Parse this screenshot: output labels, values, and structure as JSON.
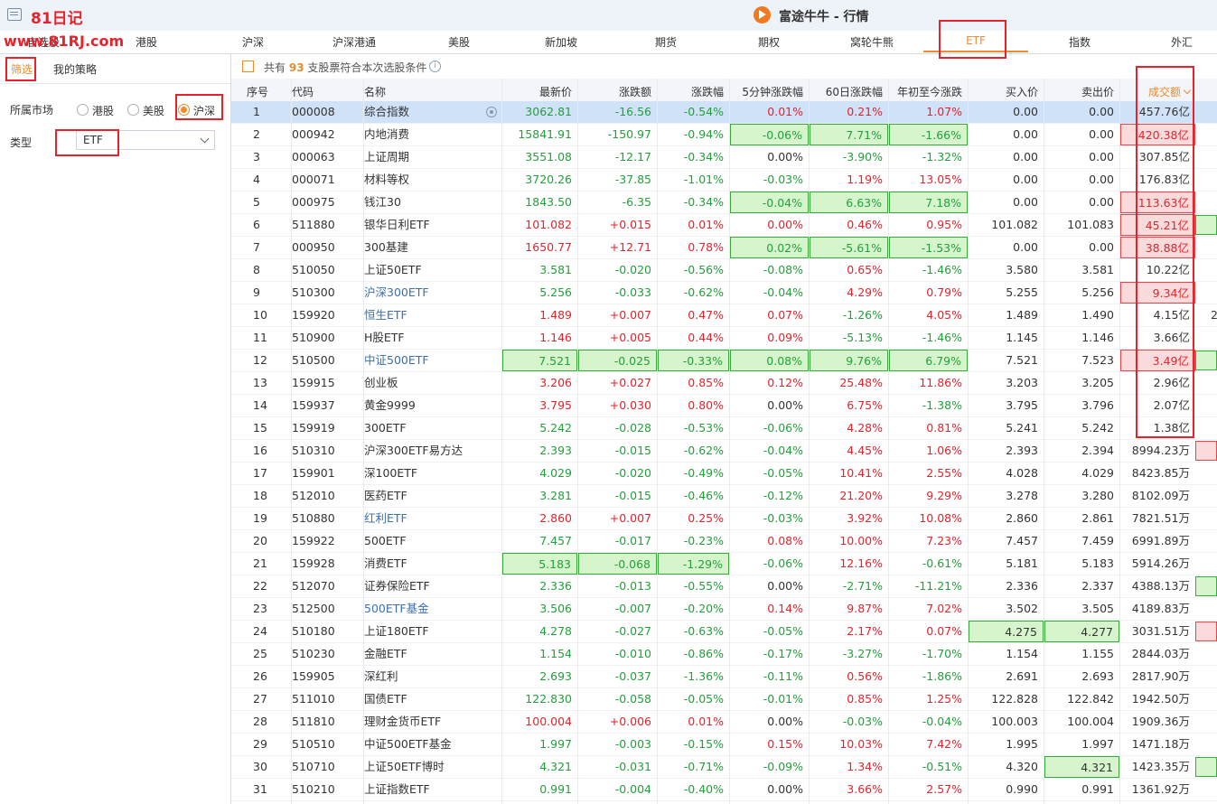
{
  "window": {
    "title": "富途牛牛 - 行情",
    "watermark_title": "81日记",
    "watermark_url": "www.81RJ.com"
  },
  "tabs": [
    {
      "label": "自选股"
    },
    {
      "label": "港股"
    },
    {
      "label": "沪深"
    },
    {
      "label": "沪深港通"
    },
    {
      "label": "美股"
    },
    {
      "label": "新加坡"
    },
    {
      "label": "期货"
    },
    {
      "label": "期权"
    },
    {
      "label": "窝轮牛熊"
    },
    {
      "label": "ETF",
      "active": true
    },
    {
      "label": "指数"
    },
    {
      "label": "外汇"
    }
  ],
  "left_panel": {
    "tab_filter": "筛选",
    "tab_strategy": "我的策略",
    "market_label": "所属市场",
    "market_options": [
      "港股",
      "美股",
      "沪深"
    ],
    "market_selected": "沪深",
    "type_label": "类型",
    "type_value": "ETF"
  },
  "info_bar": {
    "prefix": "共有",
    "count": "93",
    "suffix": "支股票符合本次选股条件",
    "info_icon": "i"
  },
  "table": {
    "headers": [
      "序号",
      "代码",
      "名称",
      "最新价",
      "涨跌额",
      "涨跌幅",
      "5分钟涨跌幅",
      "60日涨跌幅",
      "年初至今涨跌",
      "买入价",
      "卖出价",
      "成交额"
    ],
    "sorted_column": "成交额",
    "rows": [
      {
        "no": "1",
        "code": "000008",
        "name": "综合指数",
        "name_style": "flat",
        "price": "3062.81",
        "change": "-16.56",
        "pct": "-0.54%",
        "m5": "0.01%",
        "d60": "0.21%",
        "ytd": "1.07%",
        "bid": "0.00",
        "ask": "0.00",
        "turnover": "457.76亿",
        "price_dir": "down",
        "change_dir": "down",
        "pct_dir": "down",
        "m5_dir": "up",
        "d60_dir": "up",
        "ytd_dir": "up",
        "selected": true
      },
      {
        "no": "2",
        "code": "000942",
        "name": "内地消费",
        "name_style": "flat",
        "price": "15841.91",
        "change": "-150.97",
        "pct": "-0.94%",
        "m5": "-0.06%",
        "d60": "7.71%",
        "ytd": "-1.66%",
        "bid": "0.00",
        "ask": "0.00",
        "turnover": "420.38亿",
        "price_dir": "down",
        "change_dir": "down",
        "pct_dir": "down",
        "m5_dir": "down",
        "d60_dir": "down",
        "ytd_dir": "down",
        "hl": {
          "m5": "g",
          "d60": "g",
          "ytd": "g",
          "turnover": "r"
        },
        "turnover_dir": "up"
      },
      {
        "no": "3",
        "code": "000063",
        "name": "上证周期",
        "name_style": "flat",
        "price": "3551.08",
        "change": "-12.17",
        "pct": "-0.34%",
        "m5": "0.00%",
        "d60": "-3.90%",
        "ytd": "-1.32%",
        "bid": "0.00",
        "ask": "0.00",
        "turnover": "307.85亿",
        "price_dir": "down",
        "change_dir": "down",
        "pct_dir": "down",
        "m5_dir": "flat",
        "d60_dir": "down",
        "ytd_dir": "down"
      },
      {
        "no": "4",
        "code": "000071",
        "name": "材料等权",
        "name_style": "flat",
        "price": "3720.26",
        "change": "-37.85",
        "pct": "-1.01%",
        "m5": "-0.03%",
        "d60": "1.19%",
        "ytd": "13.05%",
        "bid": "0.00",
        "ask": "0.00",
        "turnover": "176.83亿",
        "price_dir": "down",
        "change_dir": "down",
        "pct_dir": "down",
        "m5_dir": "down",
        "d60_dir": "up",
        "ytd_dir": "up"
      },
      {
        "no": "5",
        "code": "000975",
        "name": "钱江30",
        "name_style": "flat",
        "price": "1843.50",
        "change": "-6.35",
        "pct": "-0.34%",
        "m5": "-0.04%",
        "d60": "6.63%",
        "ytd": "7.18%",
        "bid": "0.00",
        "ask": "0.00",
        "turnover": "113.63亿",
        "price_dir": "down",
        "change_dir": "down",
        "pct_dir": "down",
        "m5_dir": "down",
        "d60_dir": "down",
        "ytd_dir": "down",
        "hl": {
          "m5": "g",
          "d60": "g",
          "ytd": "g",
          "turnover": "r"
        },
        "turnover_dir": "up"
      },
      {
        "no": "6",
        "code": "511880",
        "name": "银华日利ETF",
        "name_style": "flat",
        "price": "101.082",
        "change": "+0.015",
        "pct": "0.01%",
        "m5": "0.00%",
        "d60": "0.46%",
        "ytd": "0.95%",
        "bid": "101.082",
        "ask": "101.083",
        "turnover": "45.21亿",
        "price_dir": "up",
        "change_dir": "up",
        "pct_dir": "up",
        "m5_dir": "up",
        "d60_dir": "up",
        "ytd_dir": "up",
        "hl": {
          "turnover": "r"
        },
        "turnover_dir": "up",
        "edge": "g"
      },
      {
        "no": "7",
        "code": "000950",
        "name": "300基建",
        "name_style": "flat",
        "price": "1650.77",
        "change": "+12.71",
        "pct": "0.78%",
        "m5": "0.02%",
        "d60": "-5.61%",
        "ytd": "-1.53%",
        "bid": "0.00",
        "ask": "0.00",
        "turnover": "38.88亿",
        "price_dir": "up",
        "change_dir": "up",
        "pct_dir": "up",
        "m5_dir": "down",
        "d60_dir": "down",
        "ytd_dir": "down",
        "hl": {
          "m5": "g",
          "d60": "g",
          "ytd": "g",
          "turnover": "r"
        },
        "turnover_dir": "up"
      },
      {
        "no": "8",
        "code": "510050",
        "name": "上证50ETF",
        "name_style": "flat",
        "price": "3.581",
        "change": "-0.020",
        "pct": "-0.56%",
        "m5": "-0.08%",
        "d60": "0.65%",
        "ytd": "-1.46%",
        "bid": "3.580",
        "ask": "3.581",
        "turnover": "10.22亿",
        "price_dir": "down",
        "change_dir": "down",
        "pct_dir": "down",
        "m5_dir": "down",
        "d60_dir": "up",
        "ytd_dir": "down"
      },
      {
        "no": "9",
        "code": "510300",
        "name": "沪深300ETF",
        "name_style": "link",
        "price": "5.256",
        "change": "-0.033",
        "pct": "-0.62%",
        "m5": "-0.04%",
        "d60": "4.29%",
        "ytd": "0.79%",
        "bid": "5.255",
        "ask": "5.256",
        "turnover": "9.34亿",
        "price_dir": "down",
        "change_dir": "down",
        "pct_dir": "down",
        "m5_dir": "down",
        "d60_dir": "up",
        "ytd_dir": "up",
        "hl": {
          "turnover": "r"
        },
        "turnover_dir": "up"
      },
      {
        "no": "10",
        "code": "159920",
        "name": "恒生ETF",
        "name_style": "link",
        "price": "1.489",
        "change": "+0.007",
        "pct": "0.47%",
        "m5": "0.07%",
        "d60": "-1.26%",
        "ytd": "4.05%",
        "bid": "1.489",
        "ask": "1.490",
        "turnover": "4.15亿",
        "price_dir": "up",
        "change_dir": "up",
        "pct_dir": "up",
        "m5_dir": "up",
        "d60_dir": "down",
        "ytd_dir": "up",
        "edge_text": "2"
      },
      {
        "no": "11",
        "code": "510900",
        "name": "H股ETF",
        "name_style": "flat",
        "price": "1.146",
        "change": "+0.005",
        "pct": "0.44%",
        "m5": "0.09%",
        "d60": "-5.13%",
        "ytd": "-1.46%",
        "bid": "1.145",
        "ask": "1.146",
        "turnover": "3.66亿",
        "price_dir": "up",
        "change_dir": "up",
        "pct_dir": "up",
        "m5_dir": "up",
        "d60_dir": "down",
        "ytd_dir": "down"
      },
      {
        "no": "12",
        "code": "510500",
        "name": "中证500ETF",
        "name_style": "link",
        "price": "7.521",
        "change": "-0.025",
        "pct": "-0.33%",
        "m5": "0.08%",
        "d60": "9.76%",
        "ytd": "6.79%",
        "bid": "7.521",
        "ask": "7.523",
        "turnover": "3.49亿",
        "price_dir": "down",
        "change_dir": "down",
        "pct_dir": "down",
        "m5_dir": "down",
        "d60_dir": "down",
        "ytd_dir": "down",
        "hl": {
          "price": "g",
          "change": "g",
          "pct": "g",
          "m5": "g",
          "d60": "g",
          "ytd": "g",
          "turnover": "r"
        },
        "turnover_dir": "up",
        "edge": "g"
      },
      {
        "no": "13",
        "code": "159915",
        "name": "创业板",
        "name_style": "flat",
        "price": "3.206",
        "change": "+0.027",
        "pct": "0.85%",
        "m5": "0.12%",
        "d60": "25.48%",
        "ytd": "11.86%",
        "bid": "3.203",
        "ask": "3.205",
        "turnover": "2.96亿",
        "price_dir": "up",
        "change_dir": "up",
        "pct_dir": "up",
        "m5_dir": "up",
        "d60_dir": "up",
        "ytd_dir": "up"
      },
      {
        "no": "14",
        "code": "159937",
        "name": "黄金9999",
        "name_style": "flat",
        "price": "3.795",
        "change": "+0.030",
        "pct": "0.80%",
        "m5": "0.00%",
        "d60": "6.75%",
        "ytd": "-1.38%",
        "bid": "3.795",
        "ask": "3.796",
        "turnover": "2.07亿",
        "price_dir": "up",
        "change_dir": "up",
        "pct_dir": "up",
        "m5_dir": "flat",
        "d60_dir": "up",
        "ytd_dir": "down"
      },
      {
        "no": "15",
        "code": "159919",
        "name": "300ETF",
        "name_style": "flat",
        "price": "5.242",
        "change": "-0.028",
        "pct": "-0.53%",
        "m5": "-0.06%",
        "d60": "4.28%",
        "ytd": "0.81%",
        "bid": "5.241",
        "ask": "5.242",
        "turnover": "1.38亿",
        "price_dir": "down",
        "change_dir": "down",
        "pct_dir": "down",
        "m5_dir": "down",
        "d60_dir": "up",
        "ytd_dir": "up"
      },
      {
        "no": "16",
        "code": "510310",
        "name": "沪深300ETF易方达",
        "name_style": "flat",
        "price": "2.393",
        "change": "-0.015",
        "pct": "-0.62%",
        "m5": "-0.04%",
        "d60": "4.45%",
        "ytd": "1.06%",
        "bid": "2.393",
        "ask": "2.394",
        "turnover": "8994.23万",
        "price_dir": "down",
        "change_dir": "down",
        "pct_dir": "down",
        "m5_dir": "down",
        "d60_dir": "up",
        "ytd_dir": "up",
        "edge": "r"
      },
      {
        "no": "17",
        "code": "159901",
        "name": "深100ETF",
        "name_style": "flat",
        "price": "4.029",
        "change": "-0.020",
        "pct": "-0.49%",
        "m5": "-0.05%",
        "d60": "10.41%",
        "ytd": "2.55%",
        "bid": "4.028",
        "ask": "4.029",
        "turnover": "8423.85万",
        "price_dir": "down",
        "change_dir": "down",
        "pct_dir": "down",
        "m5_dir": "down",
        "d60_dir": "up",
        "ytd_dir": "up"
      },
      {
        "no": "18",
        "code": "512010",
        "name": "医药ETF",
        "name_style": "flat",
        "price": "3.281",
        "change": "-0.015",
        "pct": "-0.46%",
        "m5": "-0.12%",
        "d60": "21.20%",
        "ytd": "9.29%",
        "bid": "3.278",
        "ask": "3.280",
        "turnover": "8102.09万",
        "price_dir": "down",
        "change_dir": "down",
        "pct_dir": "down",
        "m5_dir": "down",
        "d60_dir": "up",
        "ytd_dir": "up"
      },
      {
        "no": "19",
        "code": "510880",
        "name": "红利ETF",
        "name_style": "link",
        "price": "2.860",
        "change": "+0.007",
        "pct": "0.25%",
        "m5": "-0.03%",
        "d60": "3.92%",
        "ytd": "10.08%",
        "bid": "2.860",
        "ask": "2.861",
        "turnover": "7821.51万",
        "price_dir": "up",
        "change_dir": "up",
        "pct_dir": "up",
        "m5_dir": "down",
        "d60_dir": "up",
        "ytd_dir": "up"
      },
      {
        "no": "20",
        "code": "159922",
        "name": "500ETF",
        "name_style": "flat",
        "price": "7.457",
        "change": "-0.017",
        "pct": "-0.23%",
        "m5": "0.08%",
        "d60": "10.00%",
        "ytd": "7.23%",
        "bid": "7.457",
        "ask": "7.459",
        "turnover": "6991.89万",
        "price_dir": "down",
        "change_dir": "down",
        "pct_dir": "down",
        "m5_dir": "up",
        "d60_dir": "up",
        "ytd_dir": "up"
      },
      {
        "no": "21",
        "code": "159928",
        "name": "消费ETF",
        "name_style": "flat",
        "price": "5.183",
        "change": "-0.068",
        "pct": "-1.29%",
        "m5": "-0.06%",
        "d60": "12.16%",
        "ytd": "-0.61%",
        "bid": "5.181",
        "ask": "5.183",
        "turnover": "5914.26万",
        "price_dir": "down",
        "change_dir": "down",
        "pct_dir": "down",
        "m5_dir": "down",
        "d60_dir": "up",
        "ytd_dir": "down",
        "hl": {
          "price": "g",
          "change": "g",
          "pct": "g"
        }
      },
      {
        "no": "22",
        "code": "512070",
        "name": "证券保险ETF",
        "name_style": "flat",
        "price": "2.336",
        "change": "-0.013",
        "pct": "-0.55%",
        "m5": "0.00%",
        "d60": "-2.71%",
        "ytd": "-11.21%",
        "bid": "2.336",
        "ask": "2.337",
        "turnover": "4388.13万",
        "price_dir": "down",
        "change_dir": "down",
        "pct_dir": "down",
        "m5_dir": "flat",
        "d60_dir": "down",
        "ytd_dir": "down",
        "edge": "g"
      },
      {
        "no": "23",
        "code": "512500",
        "name": "500ETF基金",
        "name_style": "link",
        "price": "3.506",
        "change": "-0.007",
        "pct": "-0.20%",
        "m5": "0.14%",
        "d60": "9.87%",
        "ytd": "7.02%",
        "bid": "3.502",
        "ask": "3.505",
        "turnover": "4189.83万",
        "price_dir": "down",
        "change_dir": "down",
        "pct_dir": "down",
        "m5_dir": "up",
        "d60_dir": "up",
        "ytd_dir": "up"
      },
      {
        "no": "24",
        "code": "510180",
        "name": "上证180ETF",
        "name_style": "flat",
        "price": "4.278",
        "change": "-0.027",
        "pct": "-0.63%",
        "m5": "-0.05%",
        "d60": "2.17%",
        "ytd": "0.07%",
        "bid": "4.275",
        "ask": "4.277",
        "turnover": "3031.51万",
        "price_dir": "down",
        "change_dir": "down",
        "pct_dir": "down",
        "m5_dir": "down",
        "d60_dir": "up",
        "ytd_dir": "up",
        "hl": {
          "bid": "g",
          "ask": "g"
        },
        "edge": "r"
      },
      {
        "no": "25",
        "code": "510230",
        "name": "金融ETF",
        "name_style": "flat",
        "price": "1.154",
        "change": "-0.010",
        "pct": "-0.86%",
        "m5": "-0.17%",
        "d60": "-3.27%",
        "ytd": "-1.70%",
        "bid": "1.154",
        "ask": "1.155",
        "turnover": "2844.03万",
        "price_dir": "down",
        "change_dir": "down",
        "pct_dir": "down",
        "m5_dir": "down",
        "d60_dir": "down",
        "ytd_dir": "down"
      },
      {
        "no": "26",
        "code": "159905",
        "name": "深红利",
        "name_style": "flat",
        "price": "2.693",
        "change": "-0.037",
        "pct": "-1.36%",
        "m5": "-0.11%",
        "d60": "0.56%",
        "ytd": "-1.86%",
        "bid": "2.691",
        "ask": "2.693",
        "turnover": "2817.90万",
        "price_dir": "down",
        "change_dir": "down",
        "pct_dir": "down",
        "m5_dir": "down",
        "d60_dir": "up",
        "ytd_dir": "down"
      },
      {
        "no": "27",
        "code": "511010",
        "name": "国债ETF",
        "name_style": "flat",
        "price": "122.830",
        "change": "-0.058",
        "pct": "-0.05%",
        "m5": "-0.01%",
        "d60": "0.85%",
        "ytd": "1.25%",
        "bid": "122.828",
        "ask": "122.842",
        "turnover": "1942.50万",
        "price_dir": "down",
        "change_dir": "down",
        "pct_dir": "down",
        "m5_dir": "down",
        "d60_dir": "up",
        "ytd_dir": "up"
      },
      {
        "no": "28",
        "code": "511810",
        "name": "理财金货币ETF",
        "name_style": "flat",
        "price": "100.004",
        "change": "+0.006",
        "pct": "0.01%",
        "m5": "0.00%",
        "d60": "-0.03%",
        "ytd": "-0.04%",
        "bid": "100.003",
        "ask": "100.004",
        "turnover": "1909.36万",
        "price_dir": "up",
        "change_dir": "up",
        "pct_dir": "up",
        "m5_dir": "flat",
        "d60_dir": "down",
        "ytd_dir": "down"
      },
      {
        "no": "29",
        "code": "510510",
        "name": "中证500ETF基金",
        "name_style": "flat",
        "price": "1.997",
        "change": "-0.003",
        "pct": "-0.15%",
        "m5": "0.15%",
        "d60": "10.03%",
        "ytd": "7.42%",
        "bid": "1.995",
        "ask": "1.997",
        "turnover": "1471.18万",
        "price_dir": "down",
        "change_dir": "down",
        "pct_dir": "down",
        "m5_dir": "up",
        "d60_dir": "up",
        "ytd_dir": "up"
      },
      {
        "no": "30",
        "code": "510710",
        "name": "上证50ETF博时",
        "name_style": "flat",
        "price": "4.321",
        "change": "-0.031",
        "pct": "-0.71%",
        "m5": "-0.09%",
        "d60": "1.34%",
        "ytd": "-0.51%",
        "bid": "4.320",
        "ask": "4.321",
        "turnover": "1423.35万",
        "price_dir": "down",
        "change_dir": "down",
        "pct_dir": "down",
        "m5_dir": "down",
        "d60_dir": "up",
        "ytd_dir": "down",
        "hl": {
          "ask": "g"
        },
        "edge": "g"
      },
      {
        "no": "31",
        "code": "510210",
        "name": "上证指数ETF",
        "name_style": "flat",
        "price": "0.991",
        "change": "-0.004",
        "pct": "-0.40%",
        "m5": "0.00%",
        "d60": "3.66%",
        "ytd": "2.57%",
        "bid": "0.990",
        "ask": "0.991",
        "turnover": "1361.92万",
        "price_dir": "down",
        "change_dir": "down",
        "pct_dir": "down",
        "m5_dir": "flat",
        "d60_dir": "up",
        "ytd_dir": "up"
      }
    ]
  },
  "colors": {
    "accent": "#f08a2a",
    "up": "#e8222a",
    "down": "#22a03a",
    "selected_row": "#cfe2f8",
    "annotation": "#e8222a"
  }
}
